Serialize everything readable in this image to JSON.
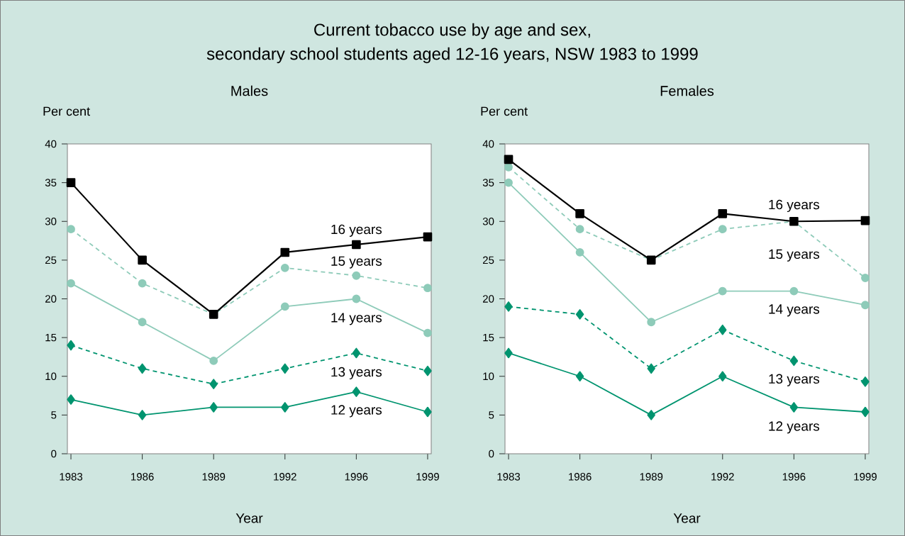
{
  "chart_data": [
    {
      "type": "line",
      "title": "Males",
      "xlabel": "Year",
      "ylabel": "Per cent",
      "annotations": [
        "Current tobacco use by age and sex,",
        "secondary school students aged 12-16 years, NSW 1983 to 1999"
      ],
      "categories": [
        "1983",
        "1986",
        "1989",
        "1992",
        "1996",
        "1999"
      ],
      "ylim": [
        0,
        40
      ],
      "yticks": [
        0,
        5,
        10,
        15,
        20,
        25,
        30,
        35,
        40
      ],
      "series": [
        {
          "name": "16 years",
          "color": "#000000",
          "marker": "square",
          "line_style": "solid",
          "values": [
            35,
            25,
            18,
            26,
            27,
            28
          ]
        },
        {
          "name": "15 years",
          "color": "#8ecbb9",
          "marker": "circle",
          "line_style": "dashed",
          "values": [
            29,
            22,
            18,
            24,
            23,
            21.4
          ]
        },
        {
          "name": "14 years",
          "color": "#8ecbb9",
          "marker": "circle",
          "line_style": "solid",
          "values": [
            22,
            17,
            12,
            19,
            20,
            15.6
          ]
        },
        {
          "name": "13 years",
          "color": "#00946f",
          "marker": "diamond",
          "line_style": "dashed",
          "values": [
            14,
            11,
            9,
            11,
            13,
            10.7
          ]
        },
        {
          "name": "12 years",
          "color": "#00946f",
          "marker": "diamond",
          "line_style": "solid",
          "values": [
            7,
            5,
            6,
            6,
            8,
            5.4
          ]
        }
      ]
    },
    {
      "type": "line",
      "title": "Females",
      "xlabel": "Year",
      "ylabel": "Per cent",
      "categories": [
        "1983",
        "1986",
        "1989",
        "1992",
        "1996",
        "1999"
      ],
      "ylim": [
        0,
        40
      ],
      "yticks": [
        0,
        5,
        10,
        15,
        20,
        25,
        30,
        35,
        40
      ],
      "series": [
        {
          "name": "16 years",
          "color": "#000000",
          "marker": "square",
          "line_style": "solid",
          "values": [
            38,
            31,
            25,
            31,
            30,
            30.1
          ]
        },
        {
          "name": "15 years",
          "color": "#8ecbb9",
          "marker": "circle",
          "line_style": "dashed",
          "values": [
            37,
            29,
            25,
            29,
            30,
            22.7
          ]
        },
        {
          "name": "14 years",
          "color": "#8ecbb9",
          "marker": "circle",
          "line_style": "solid",
          "values": [
            35,
            26,
            17,
            21,
            21,
            19.2
          ]
        },
        {
          "name": "13 years",
          "color": "#00946f",
          "marker": "diamond",
          "line_style": "dashed",
          "values": [
            19,
            18,
            11,
            16,
            12,
            9.3
          ]
        },
        {
          "name": "12 years",
          "color": "#00946f",
          "marker": "diamond",
          "line_style": "solid",
          "values": [
            13,
            10,
            5,
            10,
            6,
            5.4
          ]
        }
      ]
    }
  ]
}
